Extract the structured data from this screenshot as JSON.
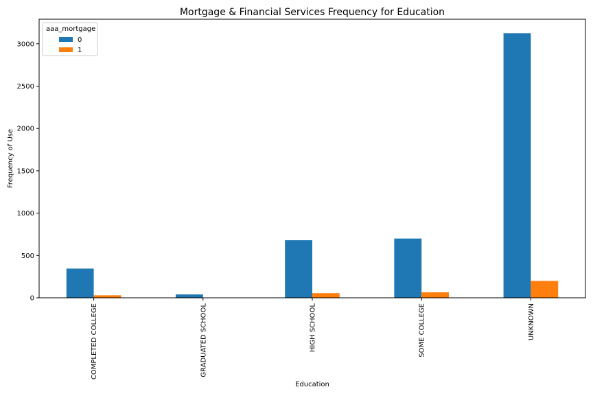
{
  "chart_data": {
    "type": "bar",
    "title": "Mortgage & Financial Services Frequency for Education",
    "xlabel": "Education",
    "ylabel": "Frequency of Use",
    "categories": [
      "COMPLETED COLLEGE",
      "GRADUATED SCHOOL",
      "HIGH SCHOOL",
      "SOME COLLEGE",
      "UNKNOWN"
    ],
    "series": [
      {
        "name": "0",
        "values": [
          345,
          40,
          680,
          700,
          3125
        ],
        "color": "#1f77b4"
      },
      {
        "name": "1",
        "values": [
          30,
          0,
          55,
          65,
          200
        ],
        "color": "#ff7f0e"
      }
    ],
    "ylim": [
      0,
      3290
    ],
    "yticks": [
      0,
      500,
      1000,
      1500,
      2000,
      2500,
      3000
    ],
    "legend": {
      "title": "aaa_mortgage",
      "placement": "top-left"
    },
    "grid": false
  }
}
